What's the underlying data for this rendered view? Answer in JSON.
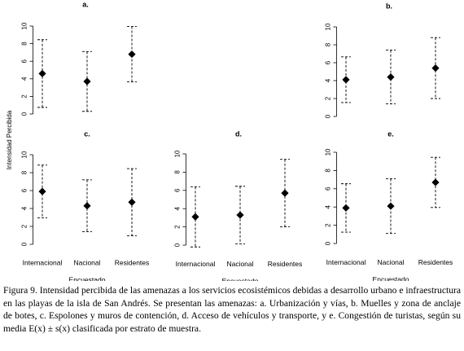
{
  "chart_data": [
    {
      "type": "errorbar",
      "title": "a.",
      "categories": [
        null,
        null,
        null
      ],
      "values": [
        4.6,
        3.7,
        6.8
      ],
      "errors": [
        3.85,
        3.4,
        3.15
      ],
      "ylim": [
        -0.4,
        10.4
      ],
      "yticks": [
        0,
        2,
        4,
        6,
        8,
        10
      ],
      "color": "#000000"
    },
    {
      "type": "errorbar",
      "title": "b.",
      "categories": [
        null,
        null,
        null
      ],
      "values": [
        4.1,
        4.4,
        5.4
      ],
      "errors": [
        2.55,
        3.0,
        3.4
      ],
      "ylim": [
        -0.4,
        10.4
      ],
      "yticks": [
        0,
        2,
        4,
        6,
        8,
        10
      ],
      "color": "#000000"
    },
    {
      "type": "errorbar",
      "title": "c.",
      "x_label": "Encuestado",
      "categories": [
        "Internacional",
        "Nacional",
        "Residentes"
      ],
      "values": [
        5.9,
        4.3,
        4.7
      ],
      "errors": [
        2.95,
        2.9,
        3.75
      ],
      "ylim": [
        -0.4,
        10.4
      ],
      "yticks": [
        0,
        2,
        4,
        6,
        8,
        10
      ],
      "color": "#000000"
    },
    {
      "type": "errorbar",
      "title": "d.",
      "x_label": "Encuestado",
      "categories": [
        "Internacional",
        "Nacional",
        "Residentes"
      ],
      "values": [
        3.1,
        3.3,
        5.7
      ],
      "errors": [
        3.3,
        3.15,
        3.7
      ],
      "ylim": [
        -0.4,
        10.4
      ],
      "yticks": [
        0,
        2,
        4,
        6,
        8,
        10
      ],
      "color": "#000000"
    },
    {
      "type": "errorbar",
      "title": "e.",
      "x_label": "Encuestado",
      "categories": [
        "Internacional",
        "Nacional",
        "Residentes"
      ],
      "values": [
        3.9,
        4.1,
        6.7
      ],
      "errors": [
        2.65,
        3.0,
        2.75
      ],
      "ylim": [
        -0.4,
        10.4
      ],
      "yticks": [
        0,
        2,
        4,
        6,
        8,
        10
      ],
      "color": "#000000"
    }
  ],
  "y_label": "Intensidad Percibida",
  "caption": "Figura 9. Intensidad percibida de las amenazas a los servicios ecosistémicos debidas a desarrollo urbano e infraestructura en las playas de la isla de San Andrés. Se presentan las amenazas: a. Urbanización y vías, b. Muelles y zona de anclaje de botes, c. Espolones y muros de contención, d. Acceso de vehículos y transporte, y e. Congestión de turistas, según su media E(x) ± s(x) clasificada por estrato de muestra."
}
